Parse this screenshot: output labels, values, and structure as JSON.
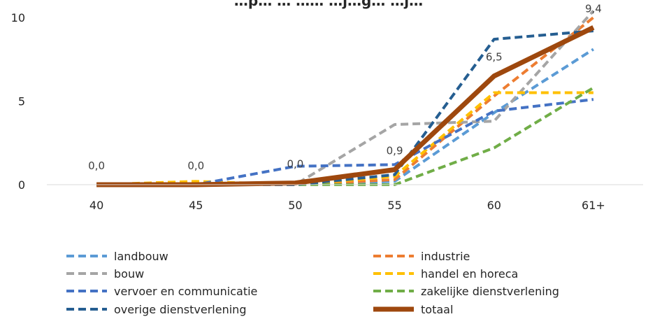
{
  "chart_data": {
    "type": "line",
    "title": "",
    "title_visible": "…p… … …… …j…g… …j…",
    "xlabel": "",
    "ylabel": "",
    "categories": [
      "40",
      "45",
      "50",
      "55",
      "60",
      "61+"
    ],
    "ylim": [
      0,
      10
    ],
    "yticks": [
      "0",
      "5",
      "10"
    ],
    "grid": false,
    "legend_position": "bottom",
    "series": [
      {
        "name": "landbouw",
        "color": "#5B9BD5",
        "dash": true,
        "values": [
          0,
          0,
          0,
          0.2,
          4.3,
          8.1
        ]
      },
      {
        "name": "industrie",
        "color": "#ED7D31",
        "dash": true,
        "values": [
          0,
          0,
          0,
          0.3,
          5.3,
          10.0
        ]
      },
      {
        "name": "bouw",
        "color": "#A5A5A5",
        "dash": true,
        "values": [
          0,
          0,
          0,
          3.6,
          3.8,
          10.4
        ]
      },
      {
        "name": "handel en horeca",
        "color": "#FFC000",
        "dash": true,
        "values": [
          0,
          0.2,
          0,
          0.5,
          5.5,
          5.5
        ]
      },
      {
        "name": "vervoer en communicatie",
        "color": "#4472C4",
        "dash": true,
        "values": [
          0,
          0,
          1.1,
          1.2,
          4.4,
          5.1
        ]
      },
      {
        "name": "zakelijke dienstverlening",
        "color": "#70AD47",
        "dash": true,
        "values": [
          0,
          0,
          0,
          0,
          2.2,
          5.8
        ]
      },
      {
        "name": "overige dienstverlening",
        "color": "#255E91",
        "dash": true,
        "values": [
          0,
          0,
          0,
          0.6,
          8.7,
          9.2
        ]
      },
      {
        "name": "totaal",
        "color": "#9E480E",
        "dash": false,
        "values": [
          0,
          0,
          0.1,
          0.9,
          6.5,
          9.4
        ]
      }
    ],
    "data_labels": [
      "0,0",
      "0,0",
      "0,0",
      "0,9",
      "6,5",
      "9,4"
    ]
  }
}
